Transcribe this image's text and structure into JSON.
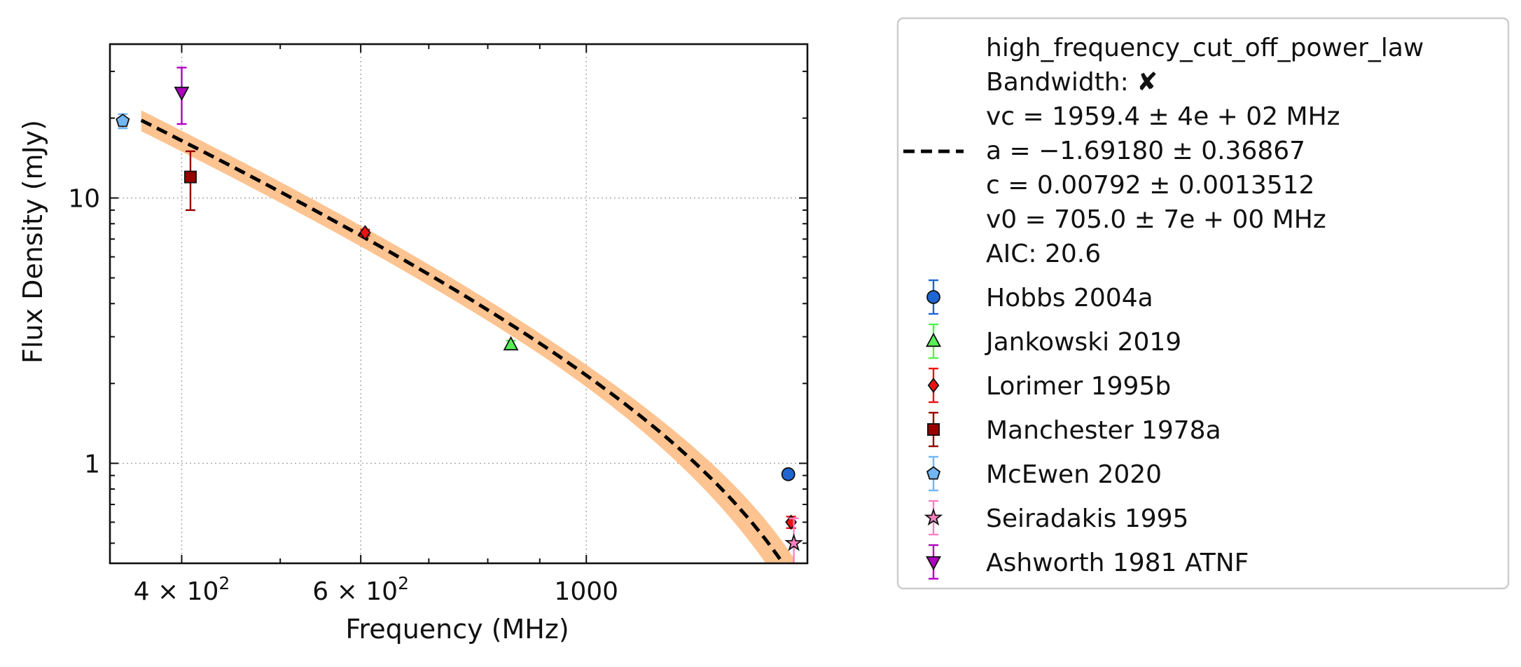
{
  "chart_data": {
    "type": "scatter",
    "xlabel": "Frequency (MHz)",
    "ylabel": "Flux Density (mJy)",
    "x_scale": "log",
    "y_scale": "log",
    "xlim": [
      340,
      1650
    ],
    "ylim": [
      0.42,
      38
    ],
    "grid": true,
    "legend_placement": "outside-right",
    "x_ticks": [
      {
        "value": 400,
        "label_base": "4",
        "label_exp": "2"
      },
      {
        "value": 600,
        "label_base": "6",
        "label_exp": "2"
      },
      {
        "value": 1000,
        "label": "1000"
      }
    ],
    "y_ticks": [
      {
        "value": 1,
        "label": "1"
      },
      {
        "value": 10,
        "label": "10"
      }
    ],
    "fit": {
      "name": "high_frequency_cut_off_power_law",
      "legend_lines": [
        "high_frequency_cut_off_power_law",
        "Bandwidth: ✘",
        "vc = 1959.4 ± 4e + 02 MHz",
        "a = −1.69180 ± 0.36867",
        "c = 0.00792 ± 0.0013512",
        "v0 = 705.0 ± 7e + 00 MHz",
        "AIC: 20.6"
      ],
      "vc": 1959.4,
      "a": -1.6918,
      "c": 0.00792,
      "v0": 705.0,
      "x_range": [
        365,
        1600
      ],
      "line_color": "#000000",
      "band_color": "#fdc08a"
    },
    "series": [
      {
        "name": "Hobbs 2004a",
        "marker": "circle",
        "color": "#1f66d1",
        "points": [
          {
            "x": 1580,
            "y": 0.91,
            "err": 0.03
          }
        ]
      },
      {
        "name": "Jankowski 2019",
        "marker": "triangle-up",
        "color": "#55f055",
        "points": [
          {
            "x": 843,
            "y": 2.8,
            "err": 0.1
          }
        ]
      },
      {
        "name": "Lorimer 1995b",
        "marker": "diamond",
        "color": "#ee1111",
        "points": [
          {
            "x": 606,
            "y": 7.4,
            "err": 0.2
          },
          {
            "x": 1590,
            "y": 0.6,
            "err": 0.03
          }
        ]
      },
      {
        "name": "Manchester 1978a",
        "marker": "square",
        "color": "#990000",
        "points": [
          {
            "x": 408,
            "y": 12,
            "err": 3
          }
        ]
      },
      {
        "name": "McEwen 2020",
        "marker": "pentagon",
        "color": "#72b6f2",
        "points": [
          {
            "x": 350,
            "y": 19.5,
            "err": 1.2
          }
        ]
      },
      {
        "name": "Seiradakis 1995",
        "marker": "star",
        "color": "#ff7fc0",
        "points": [
          {
            "x": 1600,
            "y": 0.5,
            "err": 0.12
          }
        ]
      },
      {
        "name": "Ashworth 1981 ATNF",
        "marker": "triangle-down",
        "color": "#b000c0",
        "points": [
          {
            "x": 400,
            "y": 25,
            "err": 6
          }
        ]
      }
    ]
  }
}
